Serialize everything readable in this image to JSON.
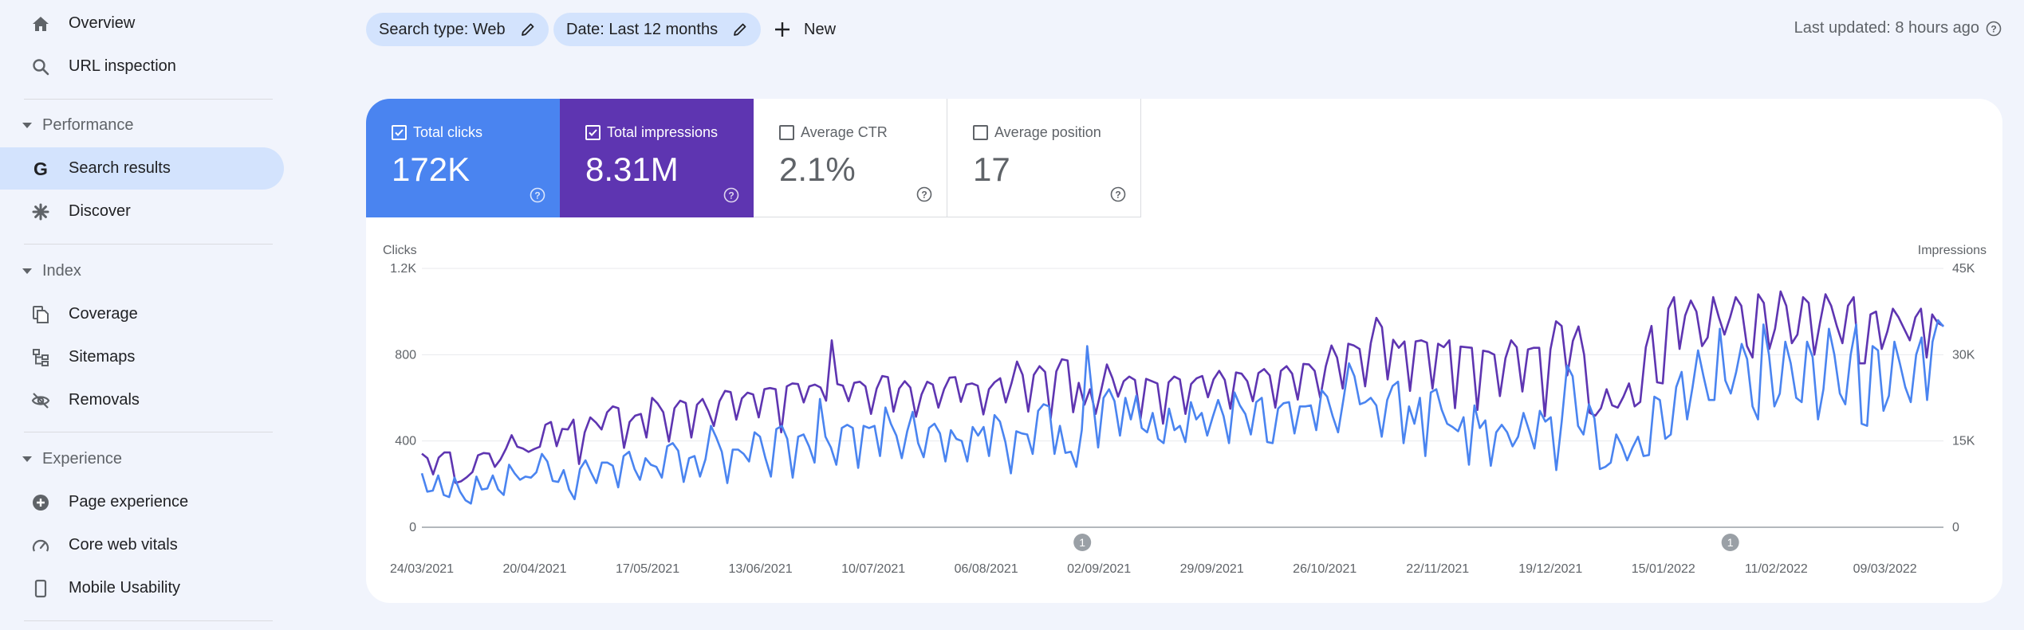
{
  "sidebar": {
    "items_top": [
      {
        "label": "Overview",
        "icon": "home-icon"
      },
      {
        "label": "URL inspection",
        "icon": "search-icon"
      }
    ],
    "performance": {
      "title": "Performance",
      "items": [
        {
          "label": "Search results",
          "icon": "google-g-icon",
          "active": true
        },
        {
          "label": "Discover",
          "icon": "asterisk-icon"
        }
      ]
    },
    "index": {
      "title": "Index",
      "items": [
        {
          "label": "Coverage",
          "icon": "file-copy-icon"
        },
        {
          "label": "Sitemaps",
          "icon": "sitemap-icon"
        },
        {
          "label": "Removals",
          "icon": "visibility-off-icon"
        }
      ]
    },
    "experience": {
      "title": "Experience",
      "items": [
        {
          "label": "Page experience",
          "icon": "add-circle-icon"
        },
        {
          "label": "Core web vitals",
          "icon": "speed-gauge-icon"
        },
        {
          "label": "Mobile Usability",
          "icon": "smartphone-icon"
        }
      ]
    }
  },
  "filters": {
    "search_type": "Search type: Web",
    "date": "Date: Last 12 months",
    "new_label": "New"
  },
  "last_updated": "Last updated: 8 hours ago",
  "metrics": {
    "clicks": {
      "label": "Total clicks",
      "value": "172K",
      "checked": true
    },
    "impressions": {
      "label": "Total impressions",
      "value": "8.31M",
      "checked": true
    },
    "ctr": {
      "label": "Average CTR",
      "value": "2.1%",
      "checked": false
    },
    "position": {
      "label": "Average position",
      "value": "17",
      "checked": false
    }
  },
  "colors": {
    "clicks": "#4a84f0",
    "impressions": "#5e35b1",
    "active_nav": "#d3e3fd",
    "background": "#f1f4fc"
  },
  "chart_data": {
    "type": "line",
    "left_axis_label": "Clicks",
    "right_axis_label": "Impressions",
    "left_ticks": [
      "1.2K",
      "800",
      "400",
      "0"
    ],
    "right_ticks": [
      "45K",
      "30K",
      "15K",
      "0"
    ],
    "left_ylim": [
      0,
      1200
    ],
    "right_ylim": [
      0,
      45000
    ],
    "x_labels": [
      "24/03/2021",
      "20/04/2021",
      "17/05/2021",
      "13/06/2021",
      "10/07/2021",
      "06/08/2021",
      "02/09/2021",
      "29/09/2021",
      "26/10/2021",
      "22/11/2021",
      "19/12/2021",
      "15/01/2022",
      "11/02/2022",
      "09/03/2022"
    ],
    "annotations": [
      {
        "label": "1",
        "date": "29/08/2021"
      },
      {
        "label": "1",
        "date": "31/01/2022"
      }
    ],
    "grid": true,
    "series": [
      {
        "name": "Clicks",
        "axis": "left",
        "x_range": [
          "24/03/2021",
          "23/03/2022"
        ],
        "values": [
          250,
          165,
          170,
          240,
          150,
          140,
          230,
          165,
          125,
          110,
          235,
          175,
          180,
          240,
          175,
          150,
          290,
          250,
          220,
          235,
          230,
          255,
          340,
          305,
          215,
          210,
          265,
          175,
          130,
          270,
          310,
          255,
          205,
          300,
          300,
          285,
          185,
          330,
          350,
          270,
          220,
          320,
          290,
          280,
          230,
          375,
          390,
          355,
          210,
          320,
          330,
          235,
          315,
          470,
          415,
          350,
          205,
          360,
          360,
          340,
          305,
          440,
          420,
          320,
          235,
          455,
          470,
          410,
          230,
          420,
          430,
          375,
          300,
          595,
          420,
          370,
          290,
          460,
          475,
          460,
          275,
          470,
          460,
          470,
          330,
          555,
          480,
          425,
          320,
          445,
          535,
          390,
          325,
          460,
          480,
          435,
          305,
          450,
          410,
          400,
          305,
          465,
          425,
          465,
          330,
          520,
          490,
          395,
          250,
          445,
          435,
          430,
          340,
          540,
          570,
          560,
          340,
          470,
          345,
          350,
          280,
          450,
          840,
          595,
          370,
          600,
          640,
          585,
          425,
          600,
          500,
          610,
          460,
          440,
          530,
          410,
          390,
          550,
          450,
          470,
          395,
          580,
          500,
          530,
          425,
          510,
          590,
          515,
          390,
          625,
          565,
          525,
          430,
          580,
          600,
          395,
          390,
          550,
          575,
          580,
          435,
          560,
          560,
          565,
          450,
          635,
          605,
          515,
          440,
          595,
          760,
          700,
          570,
          580,
          600,
          565,
          420,
          590,
          655,
          675,
          390,
          560,
          480,
          600,
          330,
          625,
          640,
          545,
          480,
          465,
          445,
          510,
          290,
          565,
          460,
          495,
          285,
          440,
          475,
          440,
          375,
          420,
          530,
          450,
          365,
          540,
          490,
          510,
          265,
          490,
          750,
          700,
          470,
          430,
          570,
          505,
          270,
          280,
          300,
          430,
          380,
          310,
          370,
          420,
          330,
          335,
          605,
          590,
          410,
          430,
          650,
          720,
          500,
          650,
          820,
          700,
          590,
          590,
          920,
          680,
          620,
          720,
          850,
          780,
          560,
          500,
          940,
          800,
          560,
          620,
          860,
          760,
          600,
          580,
          860,
          790,
          500,
          640,
          920,
          800,
          620,
          570,
          800,
          940,
          480,
          470,
          840,
          820,
          540,
          610,
          860,
          760,
          650,
          580,
          800,
          880,
          590,
          860,
          960,
          930
        ]
      },
      {
        "name": "Impressions",
        "axis": "right",
        "x_range": [
          "24/03/2021",
          "23/03/2022"
        ],
        "values": [
          12800,
          12000,
          9200,
          12100,
          13000,
          13000,
          7700,
          8000,
          8700,
          9600,
          12500,
          12900,
          12800,
          10500,
          11800,
          13700,
          16000,
          14000,
          13700,
          13100,
          13600,
          14000,
          17800,
          18300,
          14100,
          17100,
          17000,
          18700,
          11000,
          16500,
          19100,
          18200,
          17000,
          20000,
          21000,
          20700,
          13800,
          18300,
          19400,
          19700,
          15600,
          22500,
          21500,
          20000,
          14900,
          20700,
          22000,
          21600,
          15600,
          21300,
          22300,
          20200,
          17600,
          21900,
          23700,
          23500,
          18700,
          22400,
          23400,
          23100,
          19100,
          24000,
          24200,
          24000,
          16500,
          24500,
          25000,
          24900,
          21700,
          24500,
          24800,
          24300,
          22000,
          32500,
          24900,
          24600,
          21900,
          25100,
          25300,
          24500,
          19700,
          24100,
          26300,
          26100,
          20100,
          24100,
          25400,
          24300,
          19200,
          23100,
          25300,
          24800,
          20800,
          24000,
          26000,
          26100,
          21800,
          24800,
          25000,
          24600,
          19600,
          24000,
          25200,
          25900,
          21700,
          25000,
          28800,
          26500,
          20100,
          26500,
          28000,
          27000,
          18900,
          27100,
          29200,
          29000,
          20000,
          25100,
          21300,
          24000,
          19700,
          23900,
          28300,
          25900,
          22700,
          25400,
          26200,
          25600,
          18900,
          25800,
          25400,
          25000,
          18000,
          25200,
          26200,
          25700,
          19700,
          24900,
          25900,
          26300,
          22600,
          25700,
          27200,
          25600,
          20600,
          26900,
          26700,
          25400,
          21900,
          26800,
          27500,
          26400,
          20800,
          27200,
          28000,
          26700,
          22200,
          28400,
          28300,
          27200,
          22500,
          28000,
          31600,
          29500,
          24100,
          31900,
          31600,
          31000,
          24500,
          32000,
          36400,
          34800,
          25700,
          32600,
          31200,
          32300,
          23700,
          32300,
          32500,
          32100,
          24100,
          31900,
          31300,
          32500,
          20700,
          31400,
          31300,
          31200,
          20400,
          30700,
          30500,
          30000,
          22800,
          29400,
          32500,
          31300,
          23600,
          30900,
          31200,
          31200,
          19300,
          30900,
          35800,
          35000,
          26400,
          32400,
          34900,
          30000,
          19900,
          19400,
          20700,
          24000,
          21200,
          20800,
          22700,
          25000,
          21000,
          21800,
          31300,
          35000,
          25200,
          25000,
          38000,
          40000,
          31000,
          36800,
          39400,
          37500,
          31500,
          33000,
          40000,
          36500,
          33500,
          36500,
          40000,
          38500,
          31500,
          29500,
          40500,
          39000,
          31000,
          34500,
          41000,
          38500,
          32000,
          33500,
          40000,
          39000,
          30000,
          35500,
          40500,
          38500,
          35000,
          32000,
          38500,
          40000,
          28500,
          28500,
          37000,
          37500,
          31000,
          34000,
          38000,
          36500,
          34500,
          32500,
          36500,
          38000,
          29500,
          37000,
          35500,
          35000
        ]
      }
    ]
  }
}
